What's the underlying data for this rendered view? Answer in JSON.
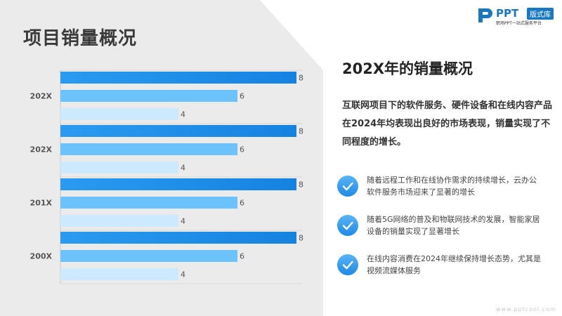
{
  "page_title": "项目销量概况",
  "logo": {
    "word": "PPT",
    "badge": "版式库",
    "sub": "职场PPT一站式服务平台"
  },
  "section_title": "202X年的销量概况",
  "description": "互联网项目下的软件服务、硬件设备和在线内容产品在2024年均表现出良好的市场表现，销量实现了不同程度的增长。",
  "bullets": [
    {
      "text": "随着远程工作和在线协作需求的持续增长，云办公软件服务市场迎来了显著的增长",
      "icon": "check-icon"
    },
    {
      "text": "随着5G网络的普及和物联网技术的发展，智能家居设备的销量实现了显著增长",
      "icon": "check-icon"
    },
    {
      "text": "在线内容消费在2024年继续保持增长态势，尤其是视频流媒体服务",
      "icon": "check-icon"
    }
  ],
  "footer": "www.pptcool.com",
  "colors": {
    "series1": "#1582e0",
    "series2": "#6cc3fb",
    "series3": "#cde9fd",
    "accent": "#1a78c2"
  },
  "chart_data": {
    "type": "bar",
    "orientation": "horizontal",
    "categories": [
      "202X",
      "202X",
      "201X",
      "200X"
    ],
    "series": [
      {
        "values": [
          8,
          8,
          8,
          8
        ]
      },
      {
        "values": [
          6,
          6,
          6,
          6
        ]
      },
      {
        "values": [
          4,
          4,
          4,
          4
        ]
      }
    ],
    "xlim": [
      0,
      8
    ],
    "grid": false,
    "data_labels": true
  }
}
